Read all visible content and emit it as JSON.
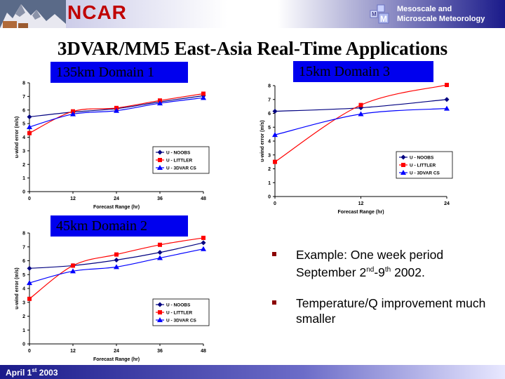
{
  "header": {
    "brand": "NCAR",
    "division_line1": "Mesoscale and",
    "division_line2": "Microscale Meteorology"
  },
  "title": "3DVAR/MM5 East-Asia Real-Time Applications",
  "bullets": [
    {
      "pre": "Example: One week period September 2",
      "sup1": "nd",
      "mid": "-9",
      "sup2": "th",
      "post": " 2002."
    },
    {
      "text": "Temperature/Q improvement much smaller"
    }
  ],
  "footer": {
    "date_pre": "April 1",
    "date_sup": "st",
    "date_post": " 2003"
  },
  "colors": {
    "noobs": "#000080",
    "littler": "#ff0000",
    "var3d": "#0000ff",
    "label_bg": "#0000ee",
    "brand": "#c00000"
  },
  "chart_data": [
    {
      "type": "line",
      "label": "135km Domain 1",
      "x": [
        0,
        12,
        24,
        36,
        48
      ],
      "xlabel": "Forecast Range (hr)",
      "ylabel": "u-wind error (m/s)",
      "ylim": [
        0,
        8
      ],
      "legend": "bottom-right",
      "series": [
        {
          "name": "U - NOOBS",
          "marker": "diamond",
          "values": [
            5.5,
            5.85,
            6.1,
            6.6,
            7.05
          ]
        },
        {
          "name": "U - LITTLER",
          "marker": "square",
          "values": [
            4.3,
            5.9,
            6.15,
            6.7,
            7.2
          ]
        },
        {
          "name": "U - 3DVAR CS",
          "marker": "triangle",
          "values": [
            4.75,
            5.7,
            5.95,
            6.5,
            6.9
          ]
        }
      ]
    },
    {
      "type": "line",
      "label": "15km Domain 3",
      "x": [
        0,
        12,
        24
      ],
      "xlabel": "Forecast Range (hr)",
      "ylabel": "u-wind error (m/s)",
      "ylim": [
        0,
        8
      ],
      "legend": "bottom-right",
      "series": [
        {
          "name": "U - NOOBS",
          "marker": "diamond",
          "values": [
            6.15,
            6.4,
            7.0
          ]
        },
        {
          "name": "U - LITTLER",
          "marker": "square",
          "values": [
            2.5,
            6.6,
            8.05
          ]
        },
        {
          "name": "U - 3DVAR CS",
          "marker": "triangle",
          "values": [
            4.45,
            5.95,
            6.35
          ]
        }
      ]
    },
    {
      "type": "line",
      "label": "45km Domain 2",
      "x": [
        0,
        12,
        24,
        36,
        48
      ],
      "xlabel": "Forecast Range (hr)",
      "ylabel": "u-wind error (m/s)",
      "ylim": [
        0,
        8
      ],
      "legend": "bottom-right",
      "series": [
        {
          "name": "U - NOOBS",
          "marker": "diamond",
          "values": [
            5.45,
            5.65,
            6.05,
            6.6,
            7.3
          ]
        },
        {
          "name": "U - LITTLER",
          "marker": "square",
          "values": [
            3.25,
            5.65,
            6.45,
            7.15,
            7.65
          ]
        },
        {
          "name": "U - 3DVAR CS",
          "marker": "triangle",
          "values": [
            4.4,
            5.25,
            5.55,
            6.2,
            6.85
          ]
        }
      ]
    }
  ]
}
